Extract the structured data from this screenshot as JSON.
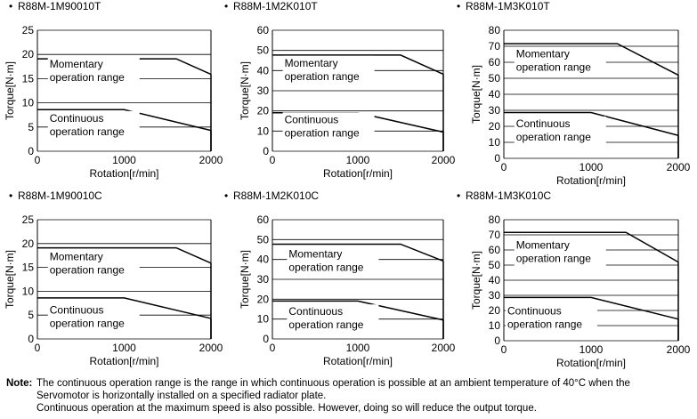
{
  "chart_data": [
    {
      "type": "line",
      "title": "R88M-1M90010T",
      "xlabel": "Rotation[r/min]",
      "ylabel": "Torque[N·m]",
      "xlim": [
        0,
        2000
      ],
      "ylim": [
        0,
        25
      ],
      "xticks": [
        0,
        1000,
        2000
      ],
      "yticks": [
        0,
        5,
        10,
        15,
        20,
        25
      ],
      "grid": "horizontal",
      "series": [
        {
          "name": "Momentary operation range",
          "x": [
            0,
            1600,
            2000
          ],
          "y": [
            19.1,
            19.1,
            15.9
          ]
        },
        {
          "name": "Continuous operation range",
          "x": [
            0,
            1000,
            2000
          ],
          "y": [
            8.6,
            8.6,
            4.3
          ]
        }
      ],
      "annotations": [
        {
          "text": [
            "Momentary",
            "operation range"
          ],
          "x": 100,
          "y": 17.3
        },
        {
          "text": [
            "Continuous",
            "operation range"
          ],
          "x": 100,
          "y": 6.1
        }
      ]
    },
    {
      "type": "line",
      "title": "R88M-1M2K010T",
      "xlabel": "Rotation[r/min]",
      "ylabel": "Torque[N·m]",
      "xlim": [
        0,
        2000
      ],
      "ylim": [
        0,
        60
      ],
      "xticks": [
        0,
        1000,
        2000
      ],
      "yticks": [
        0,
        10,
        20,
        30,
        40,
        50,
        60
      ],
      "grid": "horizontal",
      "series": [
        {
          "name": "Momentary operation range",
          "x": [
            0,
            1500,
            2000
          ],
          "y": [
            47.7,
            47.7,
            38.2
          ]
        },
        {
          "name": "Continuous operation range",
          "x": [
            0,
            1000,
            2000
          ],
          "y": [
            19.1,
            19.1,
            9.5
          ]
        }
      ],
      "annotations": [
        {
          "text": [
            "Momentary",
            "operation range"
          ],
          "x": 100,
          "y": 42
        },
        {
          "text": [
            "Continuous",
            "operation range"
          ],
          "x": 100,
          "y": 14
        }
      ]
    },
    {
      "type": "line",
      "title": "R88M-1M3K010T",
      "xlabel": "Rotation[r/min]",
      "ylabel": "Torque[N·m]",
      "xlim": [
        0,
        2000
      ],
      "ylim": [
        0,
        80
      ],
      "xticks": [
        0,
        1000,
        2000
      ],
      "yticks": [
        0,
        10,
        20,
        30,
        40,
        50,
        60,
        70,
        80
      ],
      "grid": "horizontal",
      "series": [
        {
          "name": "Momentary operation range",
          "x": [
            0,
            1300,
            2000
          ],
          "y": [
            71.6,
            71.6,
            52
          ]
        },
        {
          "name": "Continuous operation range",
          "x": [
            0,
            1000,
            2000
          ],
          "y": [
            28.6,
            28.6,
            14.3
          ]
        }
      ],
      "annotations": [
        {
          "text": [
            "Momentary",
            "operation range"
          ],
          "x": 100,
          "y": 63
        },
        {
          "text": [
            "Continuous",
            "operation range"
          ],
          "x": 100,
          "y": 19.5
        }
      ]
    },
    {
      "type": "line",
      "title": "R88M-1M90010C",
      "xlabel": "Rotation[r/min]",
      "ylabel": "Torque[N·m]",
      "xlim": [
        0,
        2000
      ],
      "ylim": [
        0,
        25
      ],
      "xticks": [
        0,
        1000,
        2000
      ],
      "yticks": [
        0,
        5,
        10,
        15,
        20,
        25
      ],
      "grid": "horizontal",
      "series": [
        {
          "name": "Momentary operation range",
          "x": [
            0,
            1600,
            2000
          ],
          "y": [
            19.1,
            19.1,
            15.9
          ]
        },
        {
          "name": "Continuous operation range",
          "x": [
            0,
            1000,
            2000
          ],
          "y": [
            8.6,
            8.6,
            4.3
          ]
        }
      ],
      "annotations": [
        {
          "text": [
            "Momentary",
            "operation range"
          ],
          "x": 100,
          "y": 16.5
        },
        {
          "text": [
            "Continuous",
            "operation range"
          ],
          "x": 100,
          "y": 5.3
        }
      ]
    },
    {
      "type": "line",
      "title": "R88M-1M2K010C",
      "xlabel": "Rotation[r/min]",
      "ylabel": "Torque[N·m]",
      "xlim": [
        0,
        2000
      ],
      "ylim": [
        0,
        60
      ],
      "xticks": [
        0,
        1000,
        2000
      ],
      "yticks": [
        0,
        10,
        20,
        30,
        40,
        50,
        60
      ],
      "grid": "horizontal",
      "series": [
        {
          "name": "Momentary operation range",
          "x": [
            0,
            1500,
            2000
          ],
          "y": [
            47.7,
            47.7,
            39.2
          ]
        },
        {
          "name": "Continuous operation range",
          "x": [
            0,
            1000,
            2000
          ],
          "y": [
            19.1,
            19.1,
            9.5
          ]
        }
      ],
      "annotations": [
        {
          "text": [
            "Momentary",
            "operation range"
          ],
          "x": 150,
          "y": 41
        },
        {
          "text": [
            "Continuous",
            "operation range"
          ],
          "x": 150,
          "y": 12
        }
      ]
    },
    {
      "type": "line",
      "title": "R88M-1M3K010C",
      "xlabel": "Rotation[r/min]",
      "ylabel": "Torque[N·m]",
      "xlim": [
        0,
        2000
      ],
      "ylim": [
        0,
        80
      ],
      "xticks": [
        0,
        1000,
        2000
      ],
      "yticks": [
        0,
        10,
        20,
        30,
        40,
        50,
        60,
        70,
        80
      ],
      "grid": "horizontal",
      "series": [
        {
          "name": "Momentary operation range",
          "x": [
            0,
            1400,
            2000
          ],
          "y": [
            71.6,
            71.6,
            52
          ]
        },
        {
          "name": "Continuous operation range",
          "x": [
            0,
            1000,
            2000
          ],
          "y": [
            28.6,
            28.6,
            14.3
          ]
        }
      ],
      "annotations": [
        {
          "text": [
            "Momentary",
            "operation range"
          ],
          "x": 100,
          "y": 61
        },
        {
          "text": [
            "Continuous",
            "operation range"
          ],
          "x": 0,
          "y": 17.5
        }
      ]
    }
  ],
  "note": {
    "label": "Note:",
    "line1": "The continuous operation range is the range in which continuous operation is possible at an ambient temperature of 40°C when the",
    "line2": "Servomotor is horizontally installed on a specified radiator plate.",
    "line3": "Continuous operation at the maximum speed is also possible. However, doing so will reduce the output torque."
  },
  "colors": {
    "line": "#000000",
    "grid": "#000000",
    "text": "#000000",
    "background": "#ffffff"
  }
}
